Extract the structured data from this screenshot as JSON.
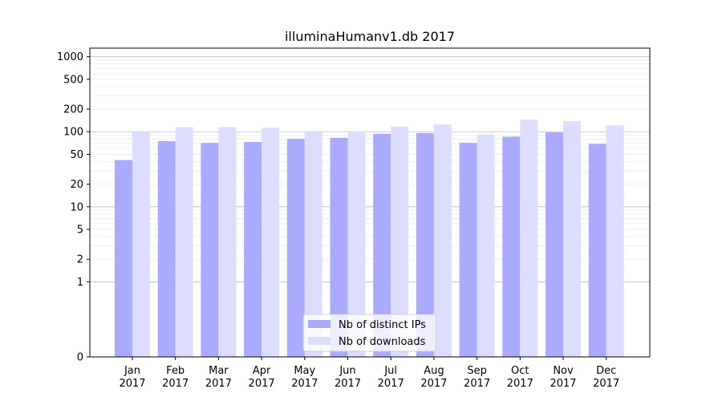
{
  "chart_data": {
    "type": "bar",
    "title": "illuminaHumanv1.db 2017",
    "xlabel": "",
    "ylabel": "",
    "categories": [
      "Jan\n2017",
      "Feb\n2017",
      "Mar\n2017",
      "Apr\n2017",
      "May\n2017",
      "Jun\n2017",
      "Jul\n2017",
      "Aug\n2017",
      "Sep\n2017",
      "Oct\n2017",
      "Nov\n2017",
      "Dec\n2017"
    ],
    "series": [
      {
        "name": "Nb of distinct IPs",
        "color": "#aaaaff",
        "values": [
          42,
          75,
          71,
          73,
          80,
          83,
          94,
          96,
          71,
          86,
          98,
          69
        ]
      },
      {
        "name": "Nb of downloads",
        "color": "#ddddff",
        "values": [
          100,
          115,
          115,
          113,
          100,
          97,
          117,
          125,
          92,
          145,
          138,
          122
        ]
      }
    ],
    "y_scale": "symlog",
    "ylim": [
      0,
      1300
    ],
    "y_ticks": [
      0,
      1,
      2,
      5,
      10,
      20,
      50,
      100,
      200,
      500,
      1000
    ],
    "grid": "horizontal, major and minor",
    "legend_position": "bottom-center"
  }
}
